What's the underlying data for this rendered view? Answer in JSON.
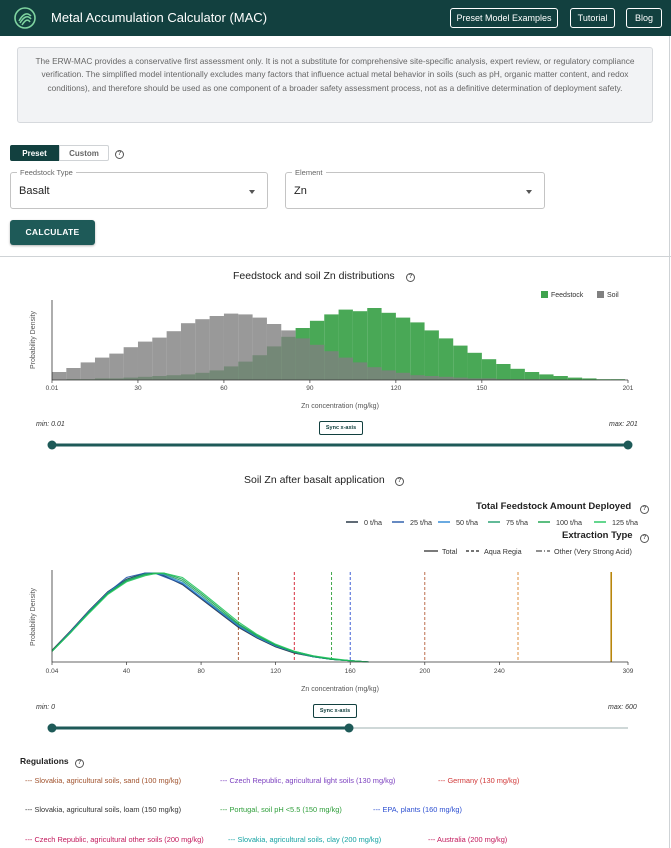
{
  "header": {
    "title": "Metal Accumulation Calculator (MAC)",
    "buttons": [
      "Preset Model Examples",
      "Tutorial",
      "Blog"
    ]
  },
  "disclaimer": "The ERW-MAC provides a conservative first assessment only. It is not a substitute for comprehensive site-specific analysis, expert review, or regulatory compliance verification. The simplified model intentionally excludes many factors that influence actual metal behavior in soils (such as pH, organic matter content, and redox conditions), and therefore should be used as one component of a broader safety assessment process, not as a definitive determination of deployment safety.",
  "mode": {
    "preset": "Preset",
    "custom": "Custom"
  },
  "feedstock": {
    "label": "Feedstock Type",
    "value": "Basalt"
  },
  "element": {
    "label": "Element",
    "value": "Zn"
  },
  "calculate_label": "CALCULATE",
  "chart1": {
    "title": "Feedstock and soil Zn distributions",
    "ylabel": "Probability Density",
    "xlabel": "Zn concentration (mg/kg)",
    "legend": [
      "Feedstock",
      "Soil"
    ],
    "ticks": [
      "0.01",
      "30",
      "60",
      "90",
      "120",
      "150",
      "201"
    ],
    "min_label": "min: 0.01",
    "max_label": "max: 201",
    "sync_label": "Sync x-axis"
  },
  "chart2": {
    "title": "Soil Zn after basalt application",
    "ylabel": "Probability Density",
    "xlabel": "Zn concentration (mg/kg)",
    "ticks": [
      "0.04",
      "40",
      "80",
      "120",
      "160",
      "200",
      "240",
      "309"
    ],
    "legend_total_title": "Total Feedstock Amount Deployed",
    "amounts": [
      "0 t/ha",
      "25 t/ha",
      "50 t/ha",
      "75 t/ha",
      "100 t/ha",
      "125 t/ha"
    ],
    "legend_extraction_title": "Extraction Type",
    "extraction": [
      "Total",
      "Aqua Regia",
      "Other (Very Strong Acid)"
    ],
    "min_label": "min: 0",
    "max_label": "max: 600",
    "sync_label": "Sync x-axis"
  },
  "regulations": {
    "title": "Regulations",
    "items": [
      "Slovakia, agricultural soils, sand (100 mg/kg)",
      "Czech Republic, agricultural light soils (130 mg/kg)",
      "Germany (130 mg/kg)",
      "Slovakia, agricultural soils, loam (150 mg/kg)",
      "Portugal, soil pH <5.5 (150 mg/kg)",
      "EPA, plants (160 mg/kg)",
      "Czech Republic, agricultural other soils (200 mg/kg)",
      "Slovakia, agricultural soils, clay (200 mg/kg)",
      "Australia (200 mg/kg)"
    ]
  },
  "chart_data": [
    {
      "type": "bar",
      "title": "Feedstock and soil Zn distributions",
      "xlabel": "Zn concentration (mg/kg)",
      "ylabel": "Probability Density",
      "xlim": [
        0.01,
        201
      ],
      "bin_width": 5,
      "series": [
        {
          "name": "Soil",
          "color": "#808080",
          "values": [
            0.1,
            0.15,
            0.22,
            0.28,
            0.33,
            0.41,
            0.48,
            0.53,
            0.61,
            0.71,
            0.76,
            0.8,
            0.83,
            0.82,
            0.78,
            0.7,
            0.62,
            0.52,
            0.44,
            0.36,
            0.28,
            0.22,
            0.16,
            0.12,
            0.09,
            0.06,
            0.05,
            0.04,
            0.03,
            0.02,
            0.02,
            0.01,
            0.01,
            0.01,
            0.01,
            0.0,
            0.0,
            0.0,
            0.0,
            0.0
          ]
        },
        {
          "name": "Feedstock",
          "color": "#3fa34d",
          "values": [
            0.0,
            0.01,
            0.01,
            0.02,
            0.02,
            0.03,
            0.04,
            0.05,
            0.06,
            0.07,
            0.09,
            0.12,
            0.17,
            0.23,
            0.31,
            0.42,
            0.54,
            0.65,
            0.74,
            0.82,
            0.88,
            0.86,
            0.9,
            0.84,
            0.78,
            0.72,
            0.62,
            0.52,
            0.43,
            0.34,
            0.26,
            0.2,
            0.14,
            0.1,
            0.07,
            0.05,
            0.03,
            0.02,
            0.01,
            0.01
          ]
        }
      ]
    },
    {
      "type": "line",
      "title": "Soil Zn after basalt application",
      "xlabel": "Zn concentration (mg/kg)",
      "ylabel": "Probability Density",
      "xlim": [
        0.04,
        309
      ],
      "x": [
        0,
        10,
        20,
        30,
        40,
        50,
        55,
        60,
        70,
        80,
        90,
        100,
        110,
        120,
        130,
        140,
        150,
        160,
        170
      ],
      "series": [
        {
          "name": "0 t/ha",
          "color": "#1b2b3a",
          "values": [
            0.13,
            0.35,
            0.58,
            0.79,
            0.93,
            1.0,
            1.0,
            0.97,
            0.87,
            0.71,
            0.55,
            0.39,
            0.27,
            0.17,
            0.1,
            0.06,
            0.03,
            0.015,
            0.0
          ]
        },
        {
          "name": "25 t/ha",
          "color": "#2457a8",
          "values": [
            0.12,
            0.34,
            0.57,
            0.78,
            0.95,
            1.0,
            1.0,
            0.96,
            0.88,
            0.72,
            0.56,
            0.4,
            0.28,
            0.18,
            0.11,
            0.06,
            0.03,
            0.015,
            0.0
          ]
        },
        {
          "name": "50 t/ha",
          "color": "#2a86d4",
          "values": [
            0.12,
            0.34,
            0.57,
            0.78,
            0.92,
            0.99,
            1.0,
            0.98,
            0.89,
            0.73,
            0.57,
            0.41,
            0.28,
            0.18,
            0.11,
            0.06,
            0.03,
            0.015,
            0.0
          ]
        },
        {
          "name": "75 t/ha",
          "color": "#1f9d6c",
          "values": [
            0.12,
            0.33,
            0.56,
            0.77,
            0.92,
            0.99,
            1.0,
            0.99,
            0.91,
            0.75,
            0.58,
            0.42,
            0.29,
            0.19,
            0.11,
            0.06,
            0.03,
            0.015,
            0.0
          ]
        },
        {
          "name": "100 t/ha",
          "color": "#16a34a",
          "values": [
            0.12,
            0.33,
            0.56,
            0.77,
            0.91,
            0.98,
            1.0,
            1.0,
            0.93,
            0.77,
            0.6,
            0.43,
            0.3,
            0.19,
            0.12,
            0.07,
            0.03,
            0.015,
            0.0
          ]
        },
        {
          "name": "125 t/ha",
          "color": "#22c55e",
          "values": [
            0.12,
            0.33,
            0.55,
            0.76,
            0.9,
            0.97,
            0.99,
            1.0,
            0.95,
            0.79,
            0.62,
            0.45,
            0.31,
            0.2,
            0.12,
            0.07,
            0.04,
            0.015,
            0.0
          ]
        }
      ],
      "thresholds": [
        {
          "value": 100,
          "style": "dashed",
          "color": "#a0522d"
        },
        {
          "value": 130,
          "style": "dashed",
          "color": "#d11a2a"
        },
        {
          "value": 150,
          "style": "dashed",
          "color": "#2e9e3a"
        },
        {
          "value": 160,
          "style": "dashed",
          "color": "#2c4fd1"
        },
        {
          "value": 200,
          "style": "dashed",
          "color": "#b45d3a"
        },
        {
          "value": 250,
          "style": "dashed",
          "color": "#d9822b"
        },
        {
          "value": 300,
          "style": "solid",
          "color": "#b8860b"
        }
      ]
    }
  ],
  "colors": {
    "header": "#12403f",
    "feedstock": "#3fa34d",
    "soil": "#808080",
    "slider": "#1e5a58",
    "reg": [
      "#a0522d",
      "#7b3fbf",
      "#d13a3a",
      "#333333",
      "#2e9e3a",
      "#2c4fd1",
      "#c2185b",
      "#14a3a3",
      "#c2185b"
    ]
  }
}
